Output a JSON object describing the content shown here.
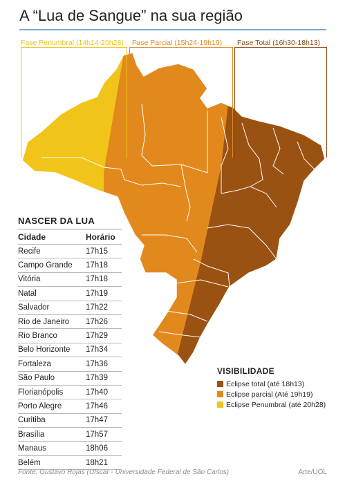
{
  "title": "A “Lua de Sangue” na sua região",
  "phases": {
    "penumbral": "Fase Penumbral (14h14-20h28)",
    "parcial": "Fase Parcial (15h24-19h19)",
    "total": "Fase Total (16h30-18h13)"
  },
  "colors": {
    "total": "#9a5213",
    "parcial": "#e2891d",
    "penumbral": "#f0c419",
    "title_rule": "#7fa7c9"
  },
  "table": {
    "title": "NASCER DA LUA",
    "headers": [
      "Cidade",
      "Horário"
    ],
    "rows": [
      [
        "Recife",
        "17h15"
      ],
      [
        "Campo Grande",
        "17h18"
      ],
      [
        "Vitória",
        "17h18"
      ],
      [
        "Natal",
        "17h19"
      ],
      [
        "Salvador",
        "17h22"
      ],
      [
        "Rio de Janeiro",
        "17h26"
      ],
      [
        "Rio Branco",
        "17h29"
      ],
      [
        "Belo Horizonte",
        "17h34"
      ],
      [
        "Fortaleza",
        "17h36"
      ],
      [
        "São Paulo",
        "17h39"
      ],
      [
        "Florianópolis",
        "17h40"
      ],
      [
        "Porto Alegre",
        "17h46"
      ],
      [
        "Curitiba",
        "17h47"
      ],
      [
        "Brasília",
        "17h57"
      ],
      [
        "Manaus",
        "18h06"
      ],
      [
        "Belém",
        "18h21"
      ]
    ]
  },
  "legend": {
    "title": "VISIBILIDADE",
    "items": [
      {
        "label": "Eclipse total (até 18h13)",
        "color": "#9a5213"
      },
      {
        "label": "Eclipse parcial (Até 19h19)",
        "color": "#e2891d"
      },
      {
        "label": "Eclipse Penumbral (até 20h28)",
        "color": "#f0c419"
      }
    ]
  },
  "source": "Fonte: Gustavo Rojas (Ufscar - Universidade Federal de São Carlos)",
  "credit": "Arte/UOL"
}
